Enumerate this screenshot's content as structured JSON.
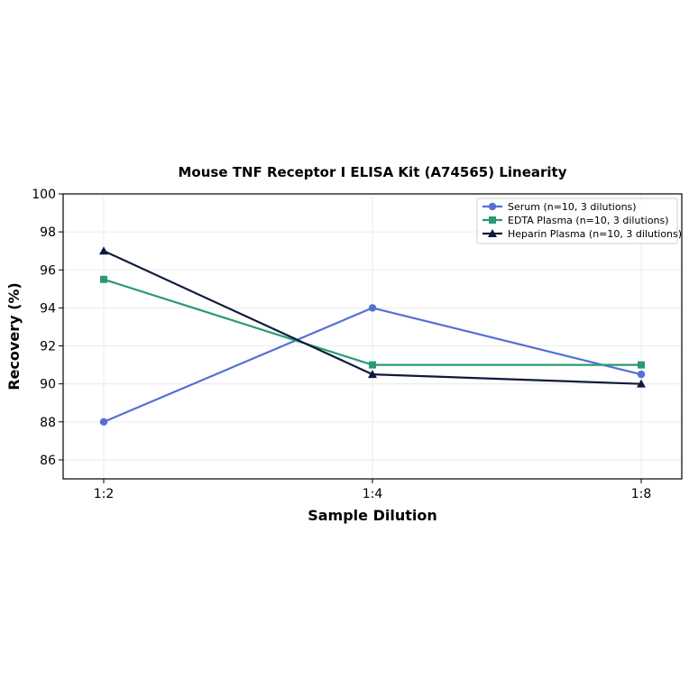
{
  "chart_data": {
    "type": "line",
    "title": "Mouse TNF Receptor I ELISA Kit (A74565) Linearity",
    "xlabel": "Sample Dilution",
    "ylabel": "Recovery (%)",
    "categories": [
      "1:2",
      "1:4",
      "1:8"
    ],
    "ylim": [
      85,
      100
    ],
    "yticks": [
      86,
      88,
      90,
      92,
      94,
      96,
      98,
      100
    ],
    "grid": true,
    "legend_position": "top-right",
    "series": [
      {
        "name": "Serum (n=10, 3 dilutions)",
        "values": [
          88,
          94,
          90.5
        ],
        "color": "#5470d6",
        "marker": "circle"
      },
      {
        "name": "EDTA Plasma (n=10, 3 dilutions)",
        "values": [
          95.5,
          91,
          91
        ],
        "color": "#2a9a74",
        "marker": "square"
      },
      {
        "name": "Heparin Plasma (n=10, 3 dilutions)",
        "values": [
          97,
          90.5,
          90
        ],
        "color": "#0f1b3d",
        "marker": "triangle"
      }
    ]
  }
}
